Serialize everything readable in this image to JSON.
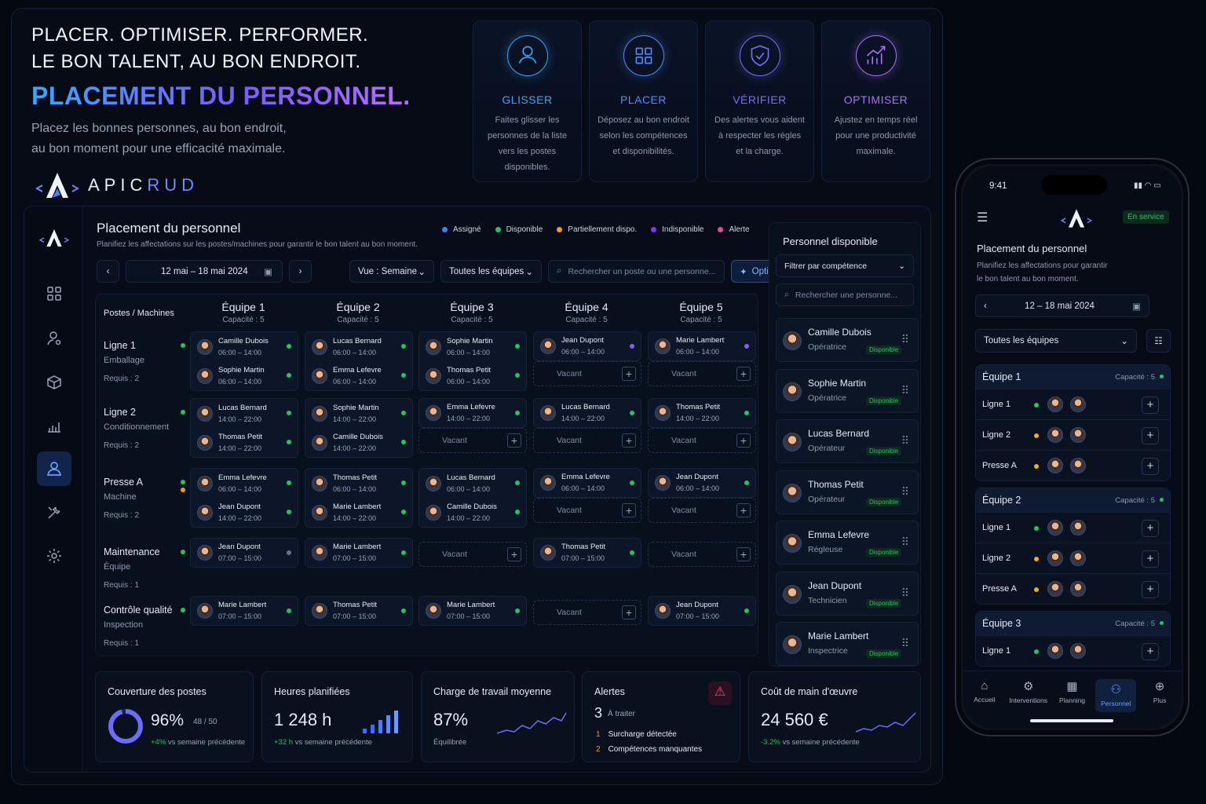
{
  "hero": {
    "line1": "PLACER. OPTIMISER. PERFORMER.",
    "line2": "LE BON TALENT, AU BON ENDROIT.",
    "headline": "PLACEMENT DU PERSONNEL.",
    "sub1": "Placez les bonnes personnes, au bon endroit,",
    "sub2": "au bon moment pour une efficacité maximale.",
    "brand_a": "APIC",
    "brand_b": "RUD"
  },
  "features": [
    {
      "title": "GLISSER",
      "color": "#3aa7ff",
      "l": [
        "Faites glisser les",
        "personnes de la liste",
        "vers les postes",
        "disponibles."
      ]
    },
    {
      "title": "PLACER",
      "color": "#4f8dff",
      "l": [
        "Déposez au bon endroit",
        "selon les compétences",
        "et disponibilités."
      ]
    },
    {
      "title": "VÉRIFIER",
      "color": "#7b6bff",
      "l": [
        "Des alertes vous aident",
        "à respecter les règles",
        "et la charge."
      ]
    },
    {
      "title": "OPTIMISER",
      "color": "#b06dff",
      "l": [
        "Ajustez en temps réel",
        "pour une productivité",
        "maximale."
      ]
    }
  ],
  "app": {
    "title": "Placement du personnel",
    "subtitle": "Planifiez les affectations sur les postes/machines pour garantir le bon talent au bon moment.",
    "legend": [
      {
        "label": "Assigné",
        "color": "#3b82f6"
      },
      {
        "label": "Disponible",
        "color": "#22c55e"
      },
      {
        "label": "Partiellement dispo.",
        "color": "#f59e0b"
      },
      {
        "label": "Indisponible",
        "color": "#7c3aed"
      },
      {
        "label": "Alerte",
        "color": "#ec4899"
      }
    ],
    "date_range": "12 mai – 18 mai 2024",
    "view": "Vue : Semaine",
    "teams_filter": "Toutes les équipes",
    "search_placeholder": "Rechercher un poste ou une personne...",
    "optimize": "Optimiser",
    "col_header": "Postes / Machines",
    "vacant": "Vacant"
  },
  "teams": [
    {
      "n": "Équipe 1",
      "c": "Capacité : 5"
    },
    {
      "n": "Équipe 2",
      "c": "Capacité : 5"
    },
    {
      "n": "Équipe 3",
      "c": "Capacité : 5"
    },
    {
      "n": "Équipe 4",
      "c": "Capacité : 5"
    },
    {
      "n": "Équipe 5",
      "c": "Capacité : 5"
    }
  ],
  "posts": [
    {
      "n": "Ligne 1",
      "t": "Emballage",
      "r": "Requis : 2"
    },
    {
      "n": "Ligne 2",
      "t": "Conditionnement",
      "r": "Requis : 2"
    },
    {
      "n": "Presse A",
      "t": "Machine",
      "r": "Requis : 2"
    },
    {
      "n": "Maintenance",
      "t": "Équipe",
      "r": "Requis : 1"
    },
    {
      "n": "Contrôle qualité",
      "t": "Inspection",
      "r": "Requis : 1"
    }
  ],
  "cells": [
    [
      [
        [
          "Camille Dubois",
          "06:00 – 14:00"
        ],
        [
          "Sophie Martin",
          "06:00 – 14:00"
        ]
      ],
      [
        [
          "Lucas Bernard",
          "06:00 – 14:00"
        ],
        [
          "Emma Lefevre",
          "06:00 – 14:00"
        ]
      ],
      [
        [
          "Sophie Martin",
          "06:00 – 14:00"
        ],
        [
          "Thomas Petit",
          "06:00 – 14:00"
        ]
      ],
      [
        [
          "Jean Dupont",
          "06:00 – 14:00"
        ]
      ],
      [
        [
          "Marie Lambert",
          "06:00 – 14:00"
        ]
      ]
    ],
    [
      [
        [
          "Lucas Bernard",
          "14:00 – 22:00"
        ],
        [
          "Thomas Petit",
          "14:00 – 22:00"
        ]
      ],
      [
        [
          "Sophie Martin",
          "14:00 – 22:00"
        ],
        [
          "Camille Dubois",
          "14:00 – 22:00"
        ]
      ],
      [
        [
          "Emma Lefevre",
          "14:00 – 22:00"
        ]
      ],
      [
        [
          "Lucas Bernard",
          "14:00 – 22:00"
        ]
      ],
      [
        [
          "Thomas Petit",
          "14:00 – 22:00"
        ]
      ]
    ],
    [
      [
        [
          "Emma Lefevre",
          "06:00 – 14:00"
        ],
        [
          "Jean Dupont",
          "14:00 – 22:00"
        ]
      ],
      [
        [
          "Thomas Petit",
          "06:00 – 14:00"
        ],
        [
          "Marie Lambert",
          "14:00 – 22:00"
        ]
      ],
      [
        [
          "Lucas Bernard",
          "06:00 – 14:00"
        ],
        [
          "Camille Dubois",
          "14:00 – 22:00"
        ]
      ],
      [
        [
          "Emma Lefevre",
          "06:00 – 14:00"
        ]
      ],
      [
        [
          "Jean Dupont",
          "06:00 – 14:00"
        ]
      ]
    ],
    [
      [
        [
          "Jean Dupont",
          "07:00 – 15:00"
        ]
      ],
      [
        [
          "Marie Lambert",
          "07:00 – 15:00"
        ]
      ],
      [],
      [
        [
          "Thomas Petit",
          "07:00 – 15:00"
        ]
      ],
      []
    ],
    [
      [
        [
          "Marie Lambert",
          "07:00 – 15:00"
        ]
      ],
      [
        [
          "Thomas Petit",
          "07:00 – 15:00"
        ]
      ],
      [
        [
          "Marie Lambert",
          "07:00 – 15:00"
        ]
      ],
      [],
      [
        [
          "Jean Dupont",
          "07:00 – 15:00"
        ]
      ]
    ]
  ],
  "available": {
    "title": "Personnel disponible",
    "filter": "Filtrer par compétence",
    "search": "Rechercher une personne...",
    "badge": "Disponible",
    "people": [
      {
        "n": "Camille Dubois",
        "r": "Opératrice"
      },
      {
        "n": "Sophie Martin",
        "r": "Opératrice"
      },
      {
        "n": "Lucas Bernard",
        "r": "Opérateur"
      },
      {
        "n": "Thomas Petit",
        "r": "Opérateur"
      },
      {
        "n": "Emma Lefevre",
        "r": "Régleuse"
      },
      {
        "n": "Jean Dupont",
        "r": "Technicien"
      },
      {
        "n": "Marie Lambert",
        "r": "Inspectrice"
      }
    ]
  },
  "kpis": {
    "coverage": {
      "h": "Couverture des postes",
      "v": "96%",
      "f": "48 / 50",
      "d": "+4%",
      "s": "vs semaine précédente",
      "pct": 0.96
    },
    "hours": {
      "h": "Heures planifiées",
      "v": "1 248 h",
      "d": "+32 h",
      "s": "vs semaine précédente"
    },
    "load": {
      "h": "Charge de travail moyenne",
      "v": "87%",
      "s": "Équilibrée"
    },
    "alerts": {
      "h": "Alertes",
      "v": "3",
      "vs": "À traiter",
      "i": [
        {
          "n": "1",
          "t": "Surcharge détectée"
        },
        {
          "n": "2",
          "t": "Compétences manquantes"
        }
      ]
    },
    "cost": {
      "h": "Coût de main d'œuvre",
      "v": "24 560 €",
      "d": "-3.2%",
      "s": "vs semaine précédente"
    }
  },
  "phone": {
    "time": "9:41",
    "status": "En service",
    "title": "Placement du personnel",
    "sub1": "Planifiez les affectations pour garantir",
    "sub2": "le bon talent au bon moment.",
    "date": "12 – 18 mai 2024",
    "filter": "Toutes les équipes",
    "teams": [
      {
        "n": "Équipe 1",
        "c": "Capacité : 5",
        "rows": [
          "Ligne 1",
          "Ligne 2",
          "Presse A"
        ]
      },
      {
        "n": "Équipe 2",
        "c": "Capacité : 5",
        "rows": [
          "Ligne 1",
          "Ligne 2",
          "Presse A"
        ]
      },
      {
        "n": "Équipe 3",
        "c": "Capacité : 5",
        "rows": [
          "Ligne 1"
        ]
      }
    ],
    "nav": [
      "Accueil",
      "Interventions",
      "Planning",
      "Personnel",
      "Plus"
    ]
  }
}
